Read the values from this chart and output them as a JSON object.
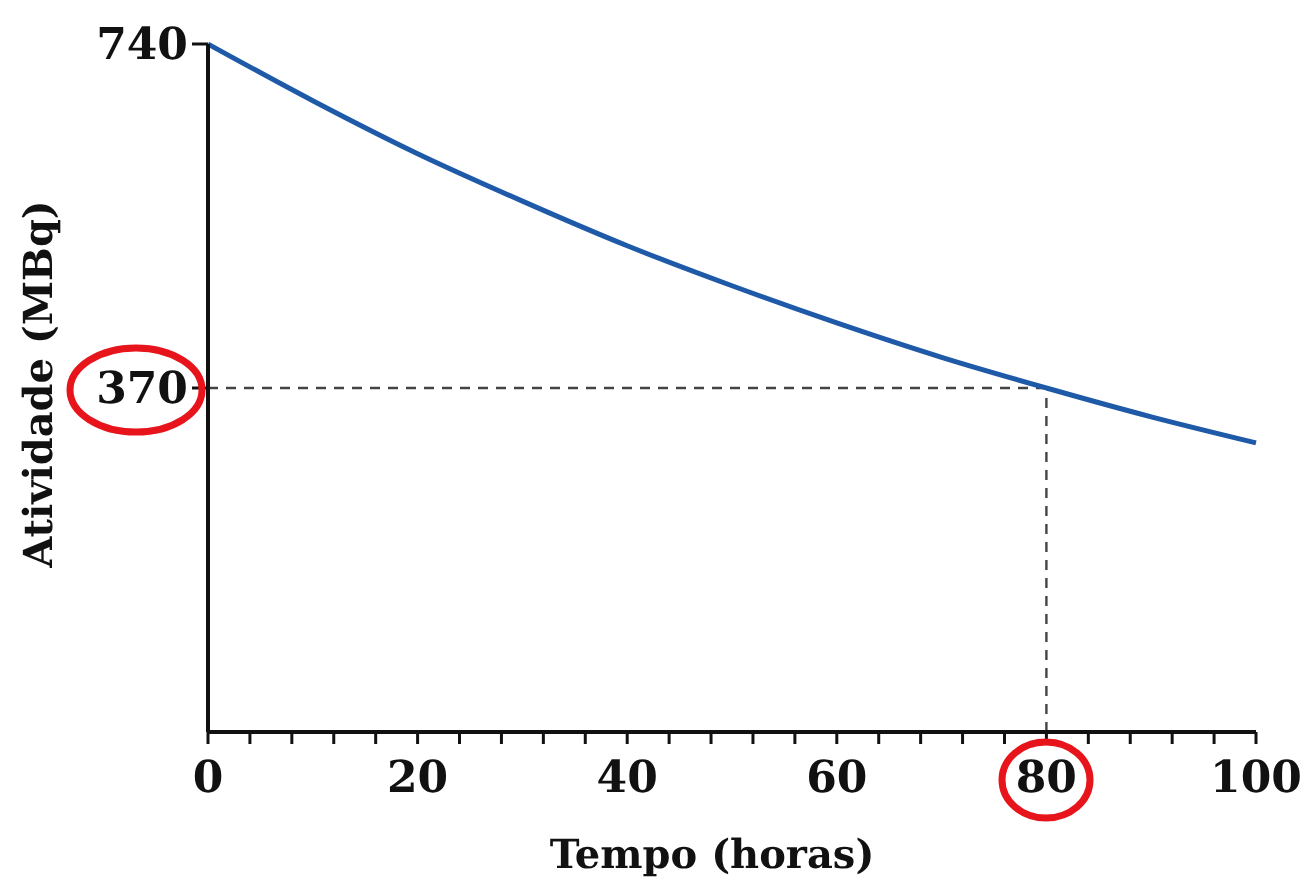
{
  "chart_data": {
    "type": "line",
    "xlabel": "Tempo (horas)",
    "ylabel": "Atividade (MBq)",
    "x": [
      0,
      10,
      20,
      30,
      40,
      50,
      60,
      70,
      80,
      90,
      100
    ],
    "series": [
      {
        "color": "#1f5aa8",
        "values": [
          740,
          679,
          622,
          571,
          523,
          480,
          440,
          403,
          370,
          339,
          311
        ]
      }
    ],
    "xlim": [
      0,
      100
    ],
    "ylim": [
      0,
      740
    ],
    "xticks": [
      0,
      {
        "value": 4,
        "label": null
      },
      {
        "value": 8,
        "label": null
      },
      {
        "value": 12,
        "label": null
      },
      {
        "value": 16,
        "label": null
      },
      20,
      {
        "value": 24,
        "label": null
      },
      {
        "value": 28,
        "label": null
      },
      {
        "value": 32,
        "label": null
      },
      {
        "value": 36,
        "label": null
      },
      40,
      {
        "value": 44,
        "label": null
      },
      {
        "value": 48,
        "label": null
      },
      {
        "value": 52,
        "label": null
      },
      {
        "value": 56,
        "label": null
      },
      60,
      {
        "value": 64,
        "label": null
      },
      {
        "value": 68,
        "label": null
      },
      {
        "value": 72,
        "label": null
      },
      {
        "value": 76,
        "label": null
      },
      80,
      {
        "value": 84,
        "label": null
      },
      {
        "value": 88,
        "label": null
      },
      {
        "value": 92,
        "label": null
      },
      {
        "value": 96,
        "label": null
      },
      100
    ],
    "yticks": [
      370,
      740
    ],
    "ref_lines": [
      {
        "axis": "y",
        "value": 370,
        "color": "#444444",
        "line_style": "dashed"
      },
      {
        "axis": "x",
        "value": 80,
        "color": "#444444",
        "line_style": "dashed"
      }
    ],
    "grid": false,
    "marker": "none",
    "line_style": "solid"
  }
}
